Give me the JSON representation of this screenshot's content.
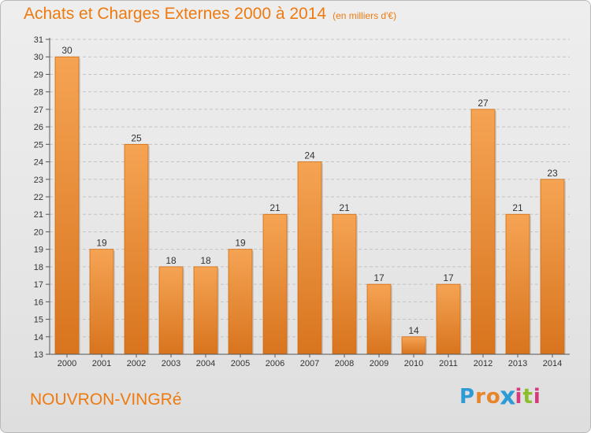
{
  "header": {
    "title": "Achats et Charges Externes 2000 à 2014",
    "subtitle": "(en milliers d'€)"
  },
  "footer": {
    "commune": "NOUVRON-VINGRé",
    "logo_letters": [
      "P",
      "r",
      "o",
      "x",
      "i",
      "t",
      "i"
    ],
    "logo_colors": [
      "#2c9bd6",
      "#e8842a",
      "#e8842a",
      "#2c9bd6",
      "#d63a7c",
      "#8bbf2c",
      "#d63a7c"
    ]
  },
  "colors": {
    "accent": "#ee7a10",
    "bar_top": "#f5a454",
    "bar_bottom": "#d8741e"
  },
  "chart_data": {
    "type": "bar",
    "categories": [
      "2000",
      "2001",
      "2002",
      "2003",
      "2004",
      "2005",
      "2006",
      "2007",
      "2008",
      "2009",
      "2010",
      "2011",
      "2012",
      "2013",
      "2014"
    ],
    "values": [
      30,
      19,
      25,
      18,
      18,
      19,
      21,
      24,
      21,
      17,
      14,
      17,
      27,
      21,
      23
    ],
    "ylim": [
      13,
      31
    ],
    "yticks": [
      13,
      14,
      15,
      16,
      17,
      18,
      19,
      20,
      21,
      22,
      23,
      24,
      25,
      26,
      27,
      28,
      29,
      30,
      31
    ],
    "grid": "horizontal dashed",
    "legend": "none",
    "data_labels": "above bars"
  }
}
